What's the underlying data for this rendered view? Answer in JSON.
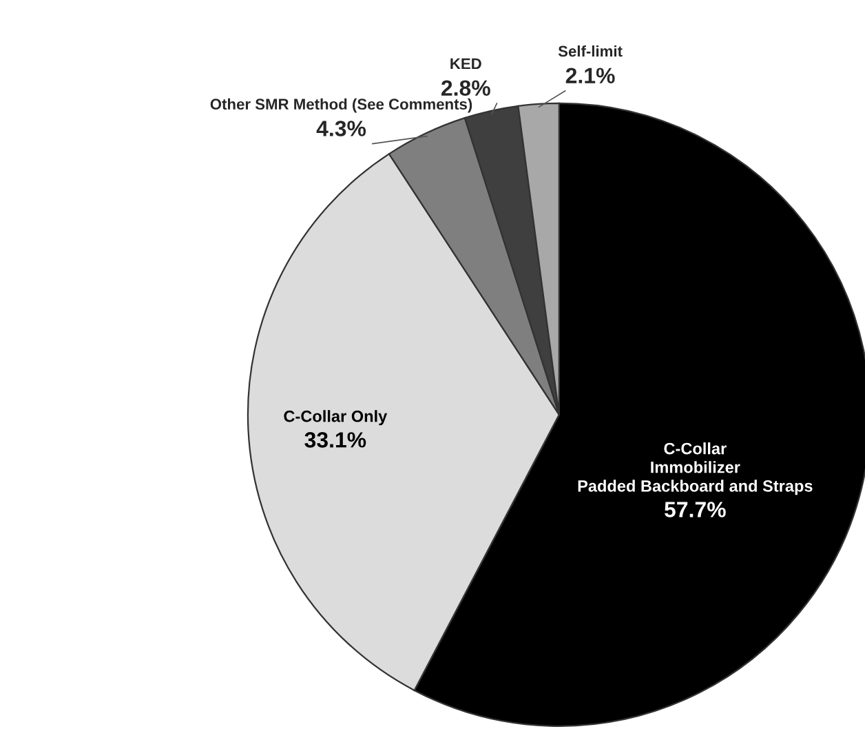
{
  "chart_data": {
    "type": "pie",
    "categories": [
      "C-Collar\nImmobilizer\nPadded Backboard and Straps",
      "C-Collar Only",
      "Other SMR Method (See Comments)",
      "KED",
      "Self-limit"
    ],
    "values": [
      57.7,
      33.1,
      4.3,
      2.8,
      2.1
    ],
    "value_labels": [
      "57.7%",
      "33.1%",
      "4.3%",
      "2.8%",
      "2.1%"
    ],
    "colors": [
      "#000000",
      "#dcdcdc",
      "#7f7f7f",
      "#3f3f3f",
      "#a8a8a8"
    ]
  }
}
